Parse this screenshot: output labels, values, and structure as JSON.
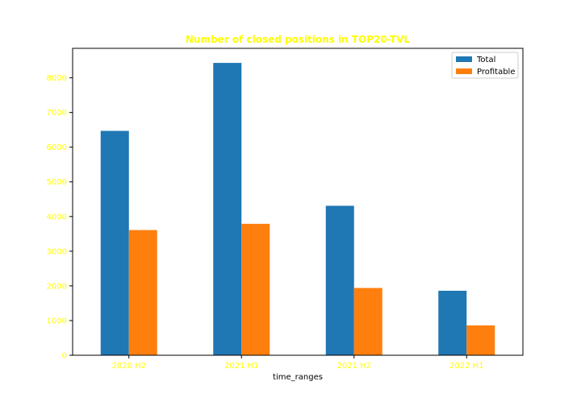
{
  "chart_data": {
    "type": "bar",
    "title": "Number of closed positions in TOP20-TVL",
    "xlabel": "time_ranges",
    "ylabel": "",
    "categories": [
      "2020 H2",
      "2021 H1",
      "2021 H2",
      "2022 H1"
    ],
    "series": [
      {
        "name": "Total",
        "values": [
          6470,
          8430,
          4310,
          1860
        ],
        "color": "#1f77b4"
      },
      {
        "name": "Profitable",
        "values": [
          3610,
          3790,
          1940,
          860
        ],
        "color": "#ff7f0e"
      }
    ],
    "ylim": [
      0,
      8850
    ],
    "yticks": [
      0,
      1000,
      2000,
      3000,
      4000,
      5000,
      6000,
      7000,
      8000
    ],
    "grid": false,
    "legend_position": "top-right",
    "title_color": "#ffff00",
    "tick_color": "#ffff00"
  }
}
